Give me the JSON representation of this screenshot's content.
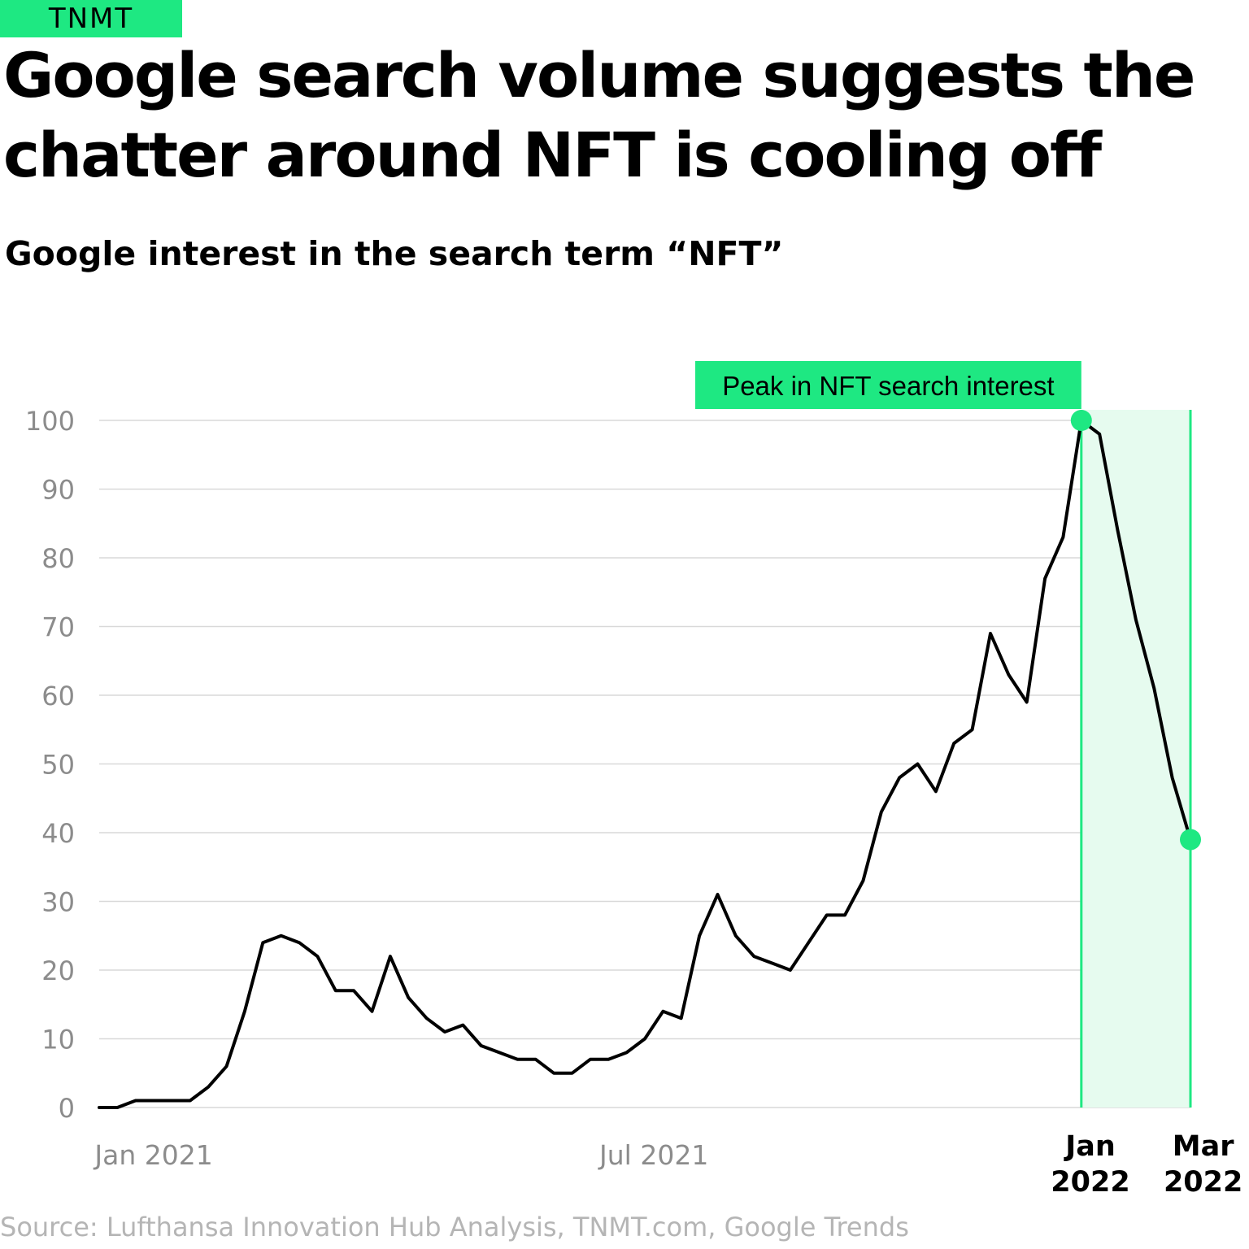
{
  "logo": "TNMT",
  "title": "Google search volume suggests the chatter around NFT is cooling off",
  "subtitle": "Google interest in the search term “NFT”",
  "source": "Source: Lufthansa Innovation Hub Analysis, TNMT.com, Google Trends",
  "colors": {
    "accent": "#1ee882",
    "line": "#000000",
    "grid": "#d9d9d9",
    "muted": "#8c8c8c",
    "highlight_fill": "#e6fbef"
  },
  "chart_data": {
    "type": "line",
    "title": "Google interest in the search term “NFT”",
    "xlabel": "",
    "ylabel": "",
    "ylim": [
      0,
      100
    ],
    "yticks": [
      0,
      10,
      20,
      30,
      40,
      50,
      60,
      70,
      80,
      90,
      100
    ],
    "x_index_range": [
      0,
      60
    ],
    "xticks": [
      {
        "index": 3,
        "label": "Jan 2021",
        "emphasis": false
      },
      {
        "index": 30.5,
        "label": "Jul 2021",
        "emphasis": false
      },
      {
        "index": 54.5,
        "label": "Jan\n2022",
        "emphasis": true
      },
      {
        "index": 60.7,
        "label": "Mar\n2022",
        "emphasis": true
      }
    ],
    "series": [
      {
        "name": "NFT",
        "values": [
          0,
          0,
          1,
          1,
          1,
          1,
          3,
          6,
          14,
          24,
          25,
          24,
          22,
          17,
          17,
          14,
          22,
          16,
          13,
          11,
          12,
          9,
          8,
          7,
          7,
          5,
          5,
          7,
          7,
          8,
          10,
          14,
          13,
          25,
          31,
          25,
          22,
          21,
          20,
          24,
          28,
          28,
          33,
          43,
          48,
          50,
          46,
          53,
          55,
          69,
          63,
          59,
          77,
          83,
          100,
          98,
          84,
          71,
          61,
          48,
          39
        ]
      }
    ],
    "highlight": {
      "from_index": 54,
      "to_index": 60
    },
    "markers": [
      {
        "index": 54,
        "value": 100
      },
      {
        "index": 60,
        "value": 39
      }
    ],
    "annotation": {
      "text": "Peak in NFT search interest",
      "index": 54,
      "value": 100
    }
  }
}
